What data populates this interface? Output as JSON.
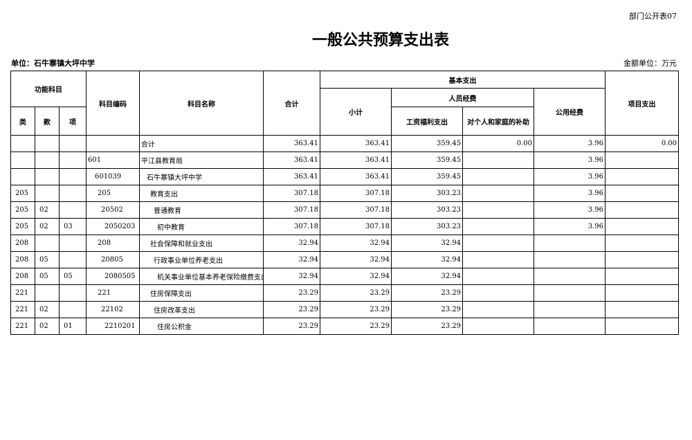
{
  "corner_label": "部门公开表07",
  "title": "一般公共预算支出表",
  "unit_label": "单位：石牛寨镇大坪中学",
  "money_unit": "金额单位：万元",
  "headers": {
    "func": "功能科目",
    "lei": "类",
    "kuan": "款",
    "xiang": "项",
    "code": "科目编码",
    "name": "科目名称",
    "total": "合计",
    "basic": "基本支出",
    "subtotal": "小计",
    "personnel": "人员经费",
    "wages": "工资福利支出",
    "subsidy": "对个人和家庭的补助",
    "public": "公用经费",
    "project": "项目支出"
  },
  "rows": [
    {
      "lei": "",
      "kuan": "",
      "xiang": "",
      "code": "",
      "name": "合计",
      "total": "363.41",
      "subtotal": "363.41",
      "wages": "359.45",
      "subsidy": "0.00",
      "public": "3.96",
      "project": "0.00",
      "indent": 0
    },
    {
      "lei": "",
      "kuan": "",
      "xiang": "",
      "code": "601",
      "name": "平江县教育局",
      "total": "363.41",
      "subtotal": "363.41",
      "wages": "359.45",
      "subsidy": "",
      "public": "3.96",
      "project": "",
      "indent": 0
    },
    {
      "lei": "",
      "kuan": "",
      "xiang": "",
      "code": "601039",
      "name": "石牛寨镇大坪中学",
      "total": "363.41",
      "subtotal": "363.41",
      "wages": "359.45",
      "subsidy": "",
      "public": "3.96",
      "project": "",
      "indent": 1
    },
    {
      "lei": "205",
      "kuan": "",
      "xiang": "",
      "code": "205",
      "name": "教育支出",
      "total": "307.18",
      "subtotal": "307.18",
      "wages": "303.23",
      "subsidy": "",
      "public": "3.96",
      "project": "",
      "indent": 2
    },
    {
      "lei": "205",
      "kuan": "02",
      "xiang": "",
      "code": "20502",
      "name": "普通教育",
      "total": "307.18",
      "subtotal": "307.18",
      "wages": "303.23",
      "subsidy": "",
      "public": "3.96",
      "project": "",
      "indent": 3
    },
    {
      "lei": "205",
      "kuan": "02",
      "xiang": "03",
      "code": "2050203",
      "name": "初中教育",
      "total": "307.18",
      "subtotal": "307.18",
      "wages": "303.23",
      "subsidy": "",
      "public": "3.96",
      "project": "",
      "indent": 4
    },
    {
      "lei": "208",
      "kuan": "",
      "xiang": "",
      "code": "208",
      "name": "社会保障和就业支出",
      "total": "32.94",
      "subtotal": "32.94",
      "wages": "32.94",
      "subsidy": "",
      "public": "",
      "project": "",
      "indent": 2
    },
    {
      "lei": "208",
      "kuan": "05",
      "xiang": "",
      "code": "20805",
      "name": "行政事业单位养老支出",
      "total": "32.94",
      "subtotal": "32.94",
      "wages": "32.94",
      "subsidy": "",
      "public": "",
      "project": "",
      "indent": 3
    },
    {
      "lei": "208",
      "kuan": "05",
      "xiang": "05",
      "code": "2080505",
      "name": "机关事业单位基本养老保险缴费支出",
      "total": "32.94",
      "subtotal": "32.94",
      "wages": "32.94",
      "subsidy": "",
      "public": "",
      "project": "",
      "indent": 4
    },
    {
      "lei": "221",
      "kuan": "",
      "xiang": "",
      "code": "221",
      "name": "住房保障支出",
      "total": "23.29",
      "subtotal": "23.29",
      "wages": "23.29",
      "subsidy": "",
      "public": "",
      "project": "",
      "indent": 2
    },
    {
      "lei": "221",
      "kuan": "02",
      "xiang": "",
      "code": "22102",
      "name": "住房改革支出",
      "total": "23.29",
      "subtotal": "23.29",
      "wages": "23.29",
      "subsidy": "",
      "public": "",
      "project": "",
      "indent": 3
    },
    {
      "lei": "221",
      "kuan": "02",
      "xiang": "01",
      "code": "2210201",
      "name": "住房公积金",
      "total": "23.29",
      "subtotal": "23.29",
      "wages": "23.29",
      "subsidy": "",
      "public": "",
      "project": "",
      "indent": 4
    }
  ]
}
